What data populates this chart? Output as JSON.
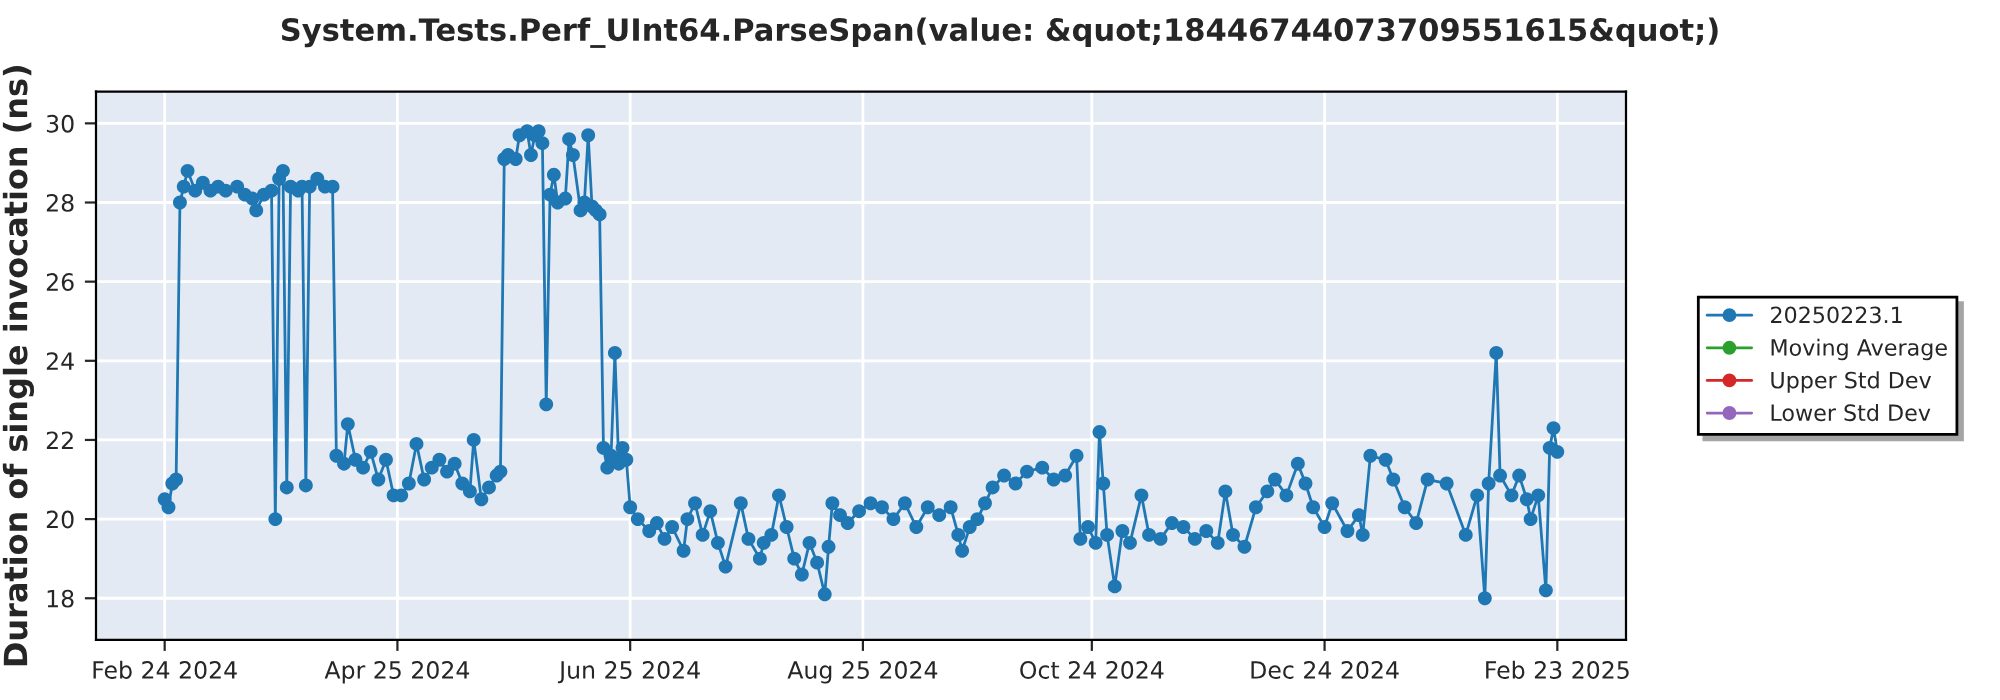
{
  "chart_data": {
    "type": "line",
    "title": "System.Tests.Perf_UInt64.ParseSpan(value: &quot;18446744073709551615&quot;)",
    "ylabel": "Duration of single invocation (ns)",
    "x": [
      "2024-02-24",
      "2024-02-25",
      "2024-02-26",
      "2024-02-27",
      "2024-02-28",
      "2024-02-29",
      "2024-03-01",
      "2024-03-03",
      "2024-03-05",
      "2024-03-07",
      "2024-03-09",
      "2024-03-11",
      "2024-03-14",
      "2024-03-16",
      "2024-03-18",
      "2024-03-19",
      "2024-03-21",
      "2024-03-23",
      "2024-03-24",
      "2024-03-25",
      "2024-03-26",
      "2024-03-27",
      "2024-03-28",
      "2024-03-30",
      "2024-03-31",
      "2024-04-01",
      "2024-04-02",
      "2024-04-04",
      "2024-04-06",
      "2024-04-08",
      "2024-04-09",
      "2024-04-11",
      "2024-04-12",
      "2024-04-14",
      "2024-04-16",
      "2024-04-18",
      "2024-04-20",
      "2024-04-22",
      "2024-04-24",
      "2024-04-26",
      "2024-04-28",
      "2024-04-30",
      "2024-05-02",
      "2024-05-04",
      "2024-05-06",
      "2024-05-08",
      "2024-05-10",
      "2024-05-12",
      "2024-05-14",
      "2024-05-15",
      "2024-05-17",
      "2024-05-19",
      "2024-05-21",
      "2024-05-22",
      "2024-05-23",
      "2024-05-24",
      "2024-05-26",
      "2024-05-27",
      "2024-05-29",
      "2024-05-30",
      "2024-05-31",
      "2024-06-01",
      "2024-06-02",
      "2024-06-03",
      "2024-06-04",
      "2024-06-05",
      "2024-06-06",
      "2024-06-08",
      "2024-06-09",
      "2024-06-10",
      "2024-06-12",
      "2024-06-13",
      "2024-06-14",
      "2024-06-15",
      "2024-06-16",
      "2024-06-17",
      "2024-06-18",
      "2024-06-19",
      "2024-06-20",
      "2024-06-21",
      "2024-06-22",
      "2024-06-23",
      "2024-06-24",
      "2024-06-25",
      "2024-06-27",
      "2024-06-30",
      "2024-07-02",
      "2024-07-04",
      "2024-07-06",
      "2024-07-09",
      "2024-07-10",
      "2024-07-12",
      "2024-07-14",
      "2024-07-16",
      "2024-07-18",
      "2024-07-20",
      "2024-07-24",
      "2024-07-26",
      "2024-07-29",
      "2024-07-30",
      "2024-08-01",
      "2024-08-03",
      "2024-08-05",
      "2024-08-07",
      "2024-08-09",
      "2024-08-11",
      "2024-08-13",
      "2024-08-15",
      "2024-08-16",
      "2024-08-17",
      "2024-08-19",
      "2024-08-21",
      "2024-08-24",
      "2024-08-27",
      "2024-08-30",
      "2024-09-02",
      "2024-09-05",
      "2024-09-08",
      "2024-09-11",
      "2024-09-14",
      "2024-09-17",
      "2024-09-19",
      "2024-09-20",
      "2024-09-22",
      "2024-09-24",
      "2024-09-26",
      "2024-09-28",
      "2024-10-01",
      "2024-10-04",
      "2024-10-07",
      "2024-10-11",
      "2024-10-14",
      "2024-10-17",
      "2024-10-20",
      "2024-10-21",
      "2024-10-23",
      "2024-10-25",
      "2024-10-26",
      "2024-10-27",
      "2024-10-28",
      "2024-10-30",
      "2024-11-01",
      "2024-11-03",
      "2024-11-06",
      "2024-11-08",
      "2024-11-11",
      "2024-11-14",
      "2024-11-17",
      "2024-11-20",
      "2024-11-23",
      "2024-11-26",
      "2024-11-28",
      "2024-11-30",
      "2024-12-03",
      "2024-12-06",
      "2024-12-09",
      "2024-12-11",
      "2024-12-14",
      "2024-12-17",
      "2024-12-19",
      "2024-12-21",
      "2024-12-24",
      "2024-12-26",
      "2024-12-30",
      "2025-01-02",
      "2025-01-03",
      "2025-01-05",
      "2025-01-09",
      "2025-01-11",
      "2025-01-14",
      "2025-01-17",
      "2025-01-20",
      "2025-01-25",
      "2025-01-30",
      "2025-02-02",
      "2025-02-04",
      "2025-02-05",
      "2025-02-07",
      "2025-02-08",
      "2025-02-11",
      "2025-02-13",
      "2025-02-15",
      "2025-02-16",
      "2025-02-18",
      "2025-02-20",
      "2025-02-21",
      "2025-02-22",
      "2025-02-23"
    ],
    "series": [
      {
        "name": "20250223.1",
        "color": "#1f77b4",
        "values": [
          20.5,
          20.3,
          20.9,
          21.0,
          28.0,
          28.4,
          28.8,
          28.3,
          28.5,
          28.3,
          28.4,
          28.3,
          28.4,
          28.2,
          28.1,
          27.8,
          28.2,
          28.3,
          20.0,
          28.6,
          28.8,
          20.8,
          28.4,
          28.3,
          28.4,
          20.85,
          28.4,
          28.6,
          28.4,
          28.4,
          21.6,
          21.4,
          22.4,
          21.5,
          21.3,
          21.7,
          21.0,
          21.5,
          20.6,
          20.6,
          20.9,
          21.9,
          21.0,
          21.3,
          21.5,
          21.2,
          21.4,
          20.9,
          20.7,
          22.0,
          20.5,
          20.8,
          21.1,
          21.2,
          29.1,
          29.2,
          29.1,
          29.7,
          29.8,
          29.2,
          29.7,
          29.8,
          29.5,
          22.9,
          28.2,
          28.7,
          28.0,
          28.1,
          29.6,
          29.2,
          27.8,
          28.0,
          29.7,
          27.9,
          27.8,
          27.7,
          21.8,
          21.3,
          21.6,
          24.2,
          21.4,
          21.8,
          21.5,
          20.3,
          20.0,
          19.7,
          19.9,
          19.5,
          19.8,
          19.2,
          20.0,
          20.4,
          19.6,
          20.2,
          19.4,
          18.8,
          20.4,
          19.5,
          19.0,
          19.4,
          19.6,
          20.6,
          19.8,
          19.0,
          18.6,
          19.4,
          18.9,
          18.1,
          19.3,
          20.4,
          20.1,
          19.9,
          20.2,
          20.4,
          20.3,
          20.0,
          20.4,
          19.8,
          20.3,
          20.1,
          20.3,
          19.6,
          19.2,
          19.8,
          20.0,
          20.4,
          20.8,
          21.1,
          20.9,
          21.2,
          21.3,
          21.0,
          21.1,
          21.6,
          19.5,
          19.8,
          19.4,
          22.2,
          20.9,
          19.6,
          18.3,
          19.7,
          19.4,
          20.6,
          19.6,
          19.5,
          19.9,
          19.8,
          19.5,
          19.7,
          19.4,
          20.7,
          19.6,
          19.3,
          20.3,
          20.7,
          21.0,
          20.6,
          21.4,
          20.9,
          20.3,
          19.8,
          20.4,
          19.7,
          20.1,
          19.6,
          21.6,
          21.5,
          21.0,
          20.3,
          19.9,
          21.0,
          20.9,
          19.6,
          20.6,
          18.0,
          20.9,
          24.2,
          21.1,
          20.6,
          21.1,
          20.5,
          20.0,
          20.6,
          18.2,
          21.8,
          22.3,
          21.7
        ]
      },
      {
        "name": "Moving Average",
        "color": "#2ca02c",
        "values": [
          null,
          null,
          null,
          null,
          null,
          null,
          null,
          null,
          null,
          null,
          null,
          null,
          null,
          null,
          null,
          null,
          null,
          null,
          null,
          null,
          null,
          null,
          null,
          null,
          null,
          null,
          null,
          null,
          null,
          null,
          null,
          null,
          null,
          null,
          null,
          null,
          null,
          null,
          null,
          null,
          null,
          null,
          null,
          null,
          null,
          null,
          null,
          null,
          null,
          null,
          null,
          null,
          null,
          null,
          null,
          null,
          null,
          null,
          null,
          null,
          null,
          null,
          null,
          null,
          null,
          null,
          null,
          null,
          null,
          null,
          null,
          null,
          null,
          null,
          null,
          null,
          null,
          null,
          null,
          null,
          null,
          null,
          null,
          null,
          null,
          null,
          null,
          null,
          null,
          null,
          null,
          null,
          null,
          null,
          null,
          null,
          null,
          null,
          null,
          null,
          null,
          null,
          null,
          null,
          null,
          null,
          null,
          null,
          null,
          null,
          null,
          null,
          null,
          null,
          null,
          null,
          null,
          null,
          null,
          null,
          null,
          null,
          null,
          null,
          null,
          null,
          null,
          null,
          null,
          null,
          null,
          null,
          null,
          null,
          null,
          null,
          null,
          null,
          null,
          null,
          null,
          null,
          null,
          null,
          null,
          null,
          null,
          null,
          null,
          null,
          null,
          null,
          null,
          null,
          null,
          null,
          null,
          null,
          null,
          null,
          null,
          null,
          null,
          null,
          null,
          null,
          null,
          null,
          null,
          null,
          null,
          null,
          null,
          null,
          null,
          null,
          null,
          null,
          null,
          null,
          null,
          null,
          null,
          null,
          null,
          null,
          null,
          null
        ]
      },
      {
        "name": "Upper Std Dev",
        "color": "#d62728",
        "values": [
          null,
          null,
          null,
          null,
          null,
          null,
          null,
          null,
          null,
          null,
          null,
          null,
          null,
          null,
          null,
          null,
          null,
          null,
          null,
          null,
          null,
          null,
          null,
          null,
          null,
          null,
          null,
          null,
          null,
          null,
          null,
          null,
          null,
          null,
          null,
          null,
          null,
          null,
          null,
          null,
          null,
          null,
          null,
          null,
          null,
          null,
          null,
          null,
          null,
          null,
          null,
          null,
          null,
          null,
          null,
          null,
          null,
          null,
          null,
          null,
          null,
          null,
          null,
          null,
          null,
          null,
          null,
          null,
          null,
          null,
          null,
          null,
          null,
          null,
          null,
          null,
          null,
          null,
          null,
          null,
          null,
          null,
          null,
          null,
          null,
          null,
          null,
          null,
          null,
          null,
          null,
          null,
          null,
          null,
          null,
          null,
          null,
          null,
          null,
          null,
          null,
          null,
          null,
          null,
          null,
          null,
          null,
          null,
          null,
          null,
          null,
          null,
          null,
          null,
          null,
          null,
          null,
          null,
          null,
          null,
          null,
          null,
          null,
          null,
          null,
          null,
          null,
          null,
          null,
          null,
          null,
          null,
          null,
          null,
          null,
          null,
          null,
          null,
          null,
          null,
          null,
          null,
          null,
          null,
          null,
          null,
          null,
          null,
          null,
          null,
          null,
          null,
          null,
          null,
          null,
          null,
          null,
          null,
          null,
          null,
          null,
          null,
          null,
          null,
          null,
          null,
          null,
          null,
          null,
          null,
          null,
          null,
          null,
          null,
          null,
          null,
          null,
          null,
          null,
          null,
          null,
          null,
          null,
          null,
          null,
          null,
          null,
          null
        ]
      },
      {
        "name": "Lower Std Dev",
        "color": "#9467bd",
        "values": [
          null,
          null,
          null,
          null,
          null,
          null,
          null,
          null,
          null,
          null,
          null,
          null,
          null,
          null,
          null,
          null,
          null,
          null,
          null,
          null,
          null,
          null,
          null,
          null,
          null,
          null,
          null,
          null,
          null,
          null,
          null,
          null,
          null,
          null,
          null,
          null,
          null,
          null,
          null,
          null,
          null,
          null,
          null,
          null,
          null,
          null,
          null,
          null,
          null,
          null,
          null,
          null,
          null,
          null,
          null,
          null,
          null,
          null,
          null,
          null,
          null,
          null,
          null,
          null,
          null,
          null,
          null,
          null,
          null,
          null,
          null,
          null,
          null,
          null,
          null,
          null,
          null,
          null,
          null,
          null,
          null,
          null,
          null,
          null,
          null,
          null,
          null,
          null,
          null,
          null,
          null,
          null,
          null,
          null,
          null,
          null,
          null,
          null,
          null,
          null,
          null,
          null,
          null,
          null,
          null,
          null,
          null,
          null,
          null,
          null,
          null,
          null,
          null,
          null,
          null,
          null,
          null,
          null,
          null,
          null,
          null,
          null,
          null,
          null,
          null,
          null,
          null,
          null,
          null,
          null,
          null,
          null,
          null,
          null,
          null,
          null,
          null,
          null,
          null,
          null,
          null,
          null,
          null,
          null,
          null,
          null,
          null,
          null,
          null,
          null,
          null,
          null,
          null,
          null,
          null,
          null,
          null,
          null,
          null,
          null,
          null,
          null,
          null,
          null,
          null,
          null,
          null,
          null,
          null,
          null,
          null,
          null,
          null,
          null,
          null,
          null,
          null,
          null,
          null,
          null,
          null,
          null,
          null,
          null,
          null,
          null,
          null,
          null
        ]
      }
    ],
    "xlim": [
      "2024-02-06",
      "2025-03-13"
    ],
    "xticks": [
      {
        "value": "2024-02-24",
        "label": "Feb 24 2024"
      },
      {
        "value": "2024-04-25",
        "label": "Apr 25 2024"
      },
      {
        "value": "2024-06-25",
        "label": "Jun 25 2024"
      },
      {
        "value": "2024-08-25",
        "label": "Aug 25 2024"
      },
      {
        "value": "2024-10-24",
        "label": "Oct 24 2024"
      },
      {
        "value": "2024-12-24",
        "label": "Dec 24 2024"
      },
      {
        "value": "2025-02-23",
        "label": "Feb 23 2025"
      }
    ],
    "ylim": [
      16.95,
      30.8
    ],
    "yticks": [
      18,
      20,
      22,
      24,
      26,
      28,
      30
    ],
    "grid": true,
    "legend": "right",
    "marker": "circle",
    "line_style": "solid"
  }
}
